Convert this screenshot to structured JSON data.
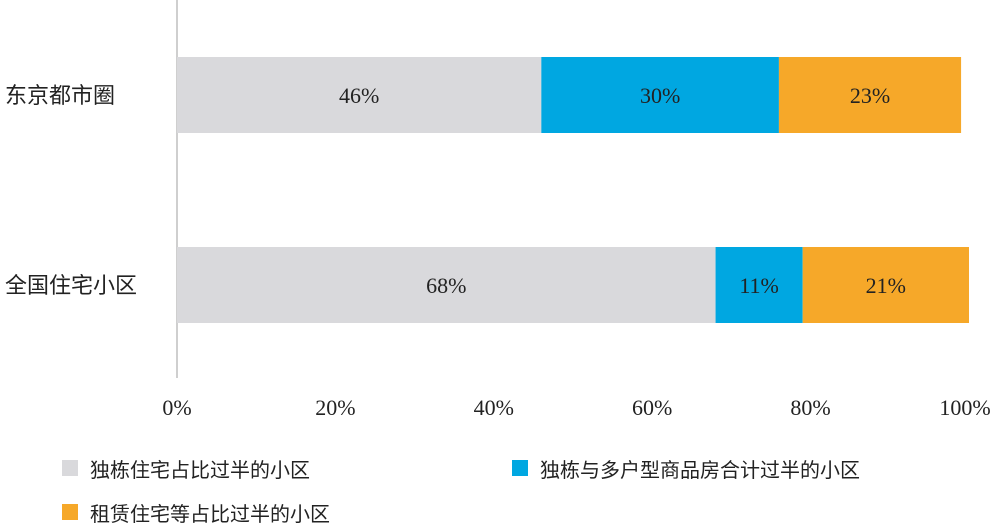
{
  "chart_data": {
    "type": "bar",
    "orientation": "horizontal",
    "stacked": true,
    "categories": [
      "东京都市圈",
      "全国住宅小区"
    ],
    "series": [
      {
        "name": "独栋住宅占比过半的小区",
        "values": [
          46,
          68
        ],
        "labels": [
          "46%",
          "68%"
        ],
        "color": "#d9d9dc"
      },
      {
        "name": "独栋与多户型商品房合计过半的小区",
        "values": [
          30,
          11
        ],
        "labels": [
          "30%",
          "11%"
        ],
        "color": "#00a7e1"
      },
      {
        "name": "租赁住宅等占比过半的小区",
        "values": [
          23,
          21
        ],
        "labels": [
          "23%",
          "21%"
        ],
        "color": "#f6a829"
      }
    ],
    "xlim": [
      0,
      100
    ],
    "x_ticks": [
      "0%",
      "20%",
      "40%",
      "60%",
      "80%",
      "100%"
    ],
    "grid": false,
    "legend_position": "bottom"
  }
}
